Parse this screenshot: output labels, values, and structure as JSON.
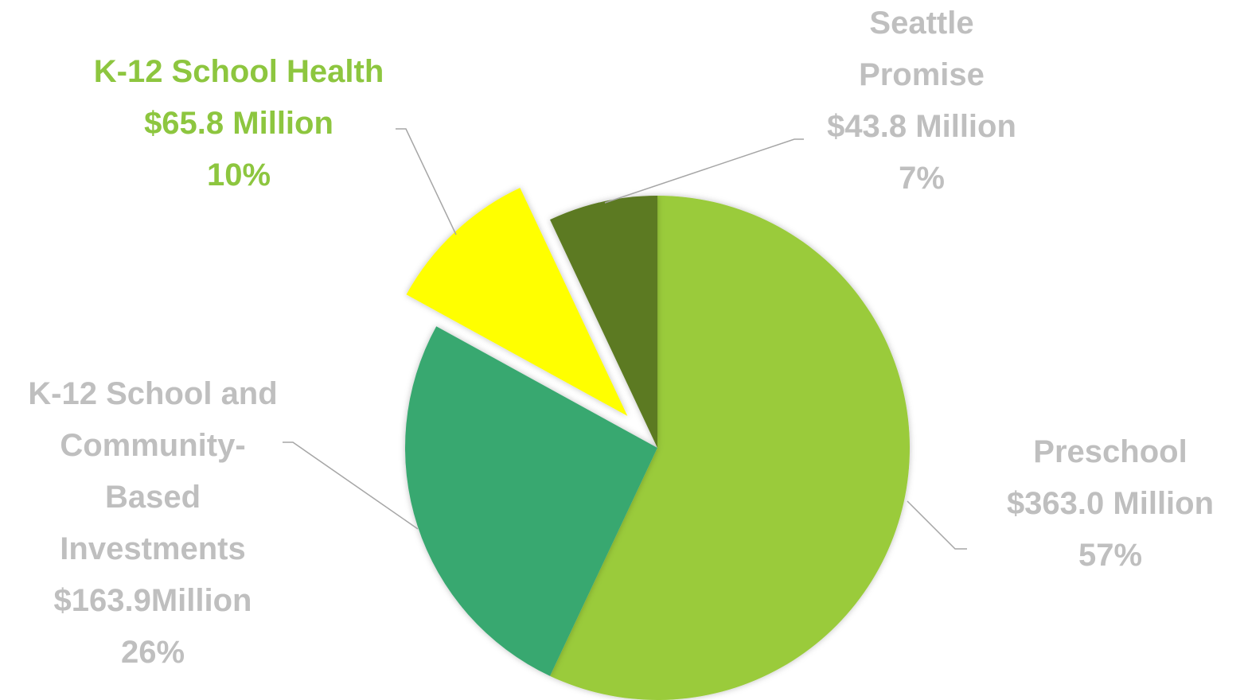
{
  "chart_data": {
    "type": "pie",
    "categories": [
      "Preschool",
      "K-12 School and Community-Based Investments",
      "K-12 School Health",
      "Seattle Promise"
    ],
    "values": [
      57,
      26,
      10,
      7
    ],
    "value_labels": [
      "57%",
      "26%",
      "10%",
      "7%"
    ],
    "amount_labels": [
      "$363.0 Million",
      "$163.9Million",
      "$65.8 Million",
      "$43.8 Million"
    ],
    "colors": [
      "#9acb3a",
      "#38a86f",
      "#ffff00",
      "#5c7a22"
    ],
    "label_colors": [
      "#bfbfbf",
      "#bfbfbf",
      "#8dc63f",
      "#bfbfbf"
    ]
  }
}
